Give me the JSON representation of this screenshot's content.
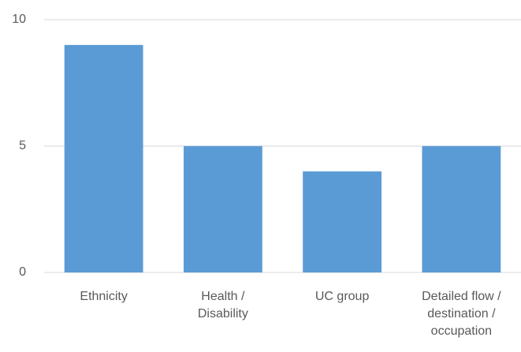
{
  "chart_data": {
    "type": "bar",
    "categories": [
      "Ethnicity",
      "Health / Disability",
      "UC group",
      "Detailed flow / destination / occupation"
    ],
    "values": [
      9,
      5,
      4,
      5
    ],
    "color": "#5b9bd5",
    "ylim": [
      0,
      10
    ],
    "yticks": [
      0,
      5,
      10
    ],
    "grid": true
  }
}
